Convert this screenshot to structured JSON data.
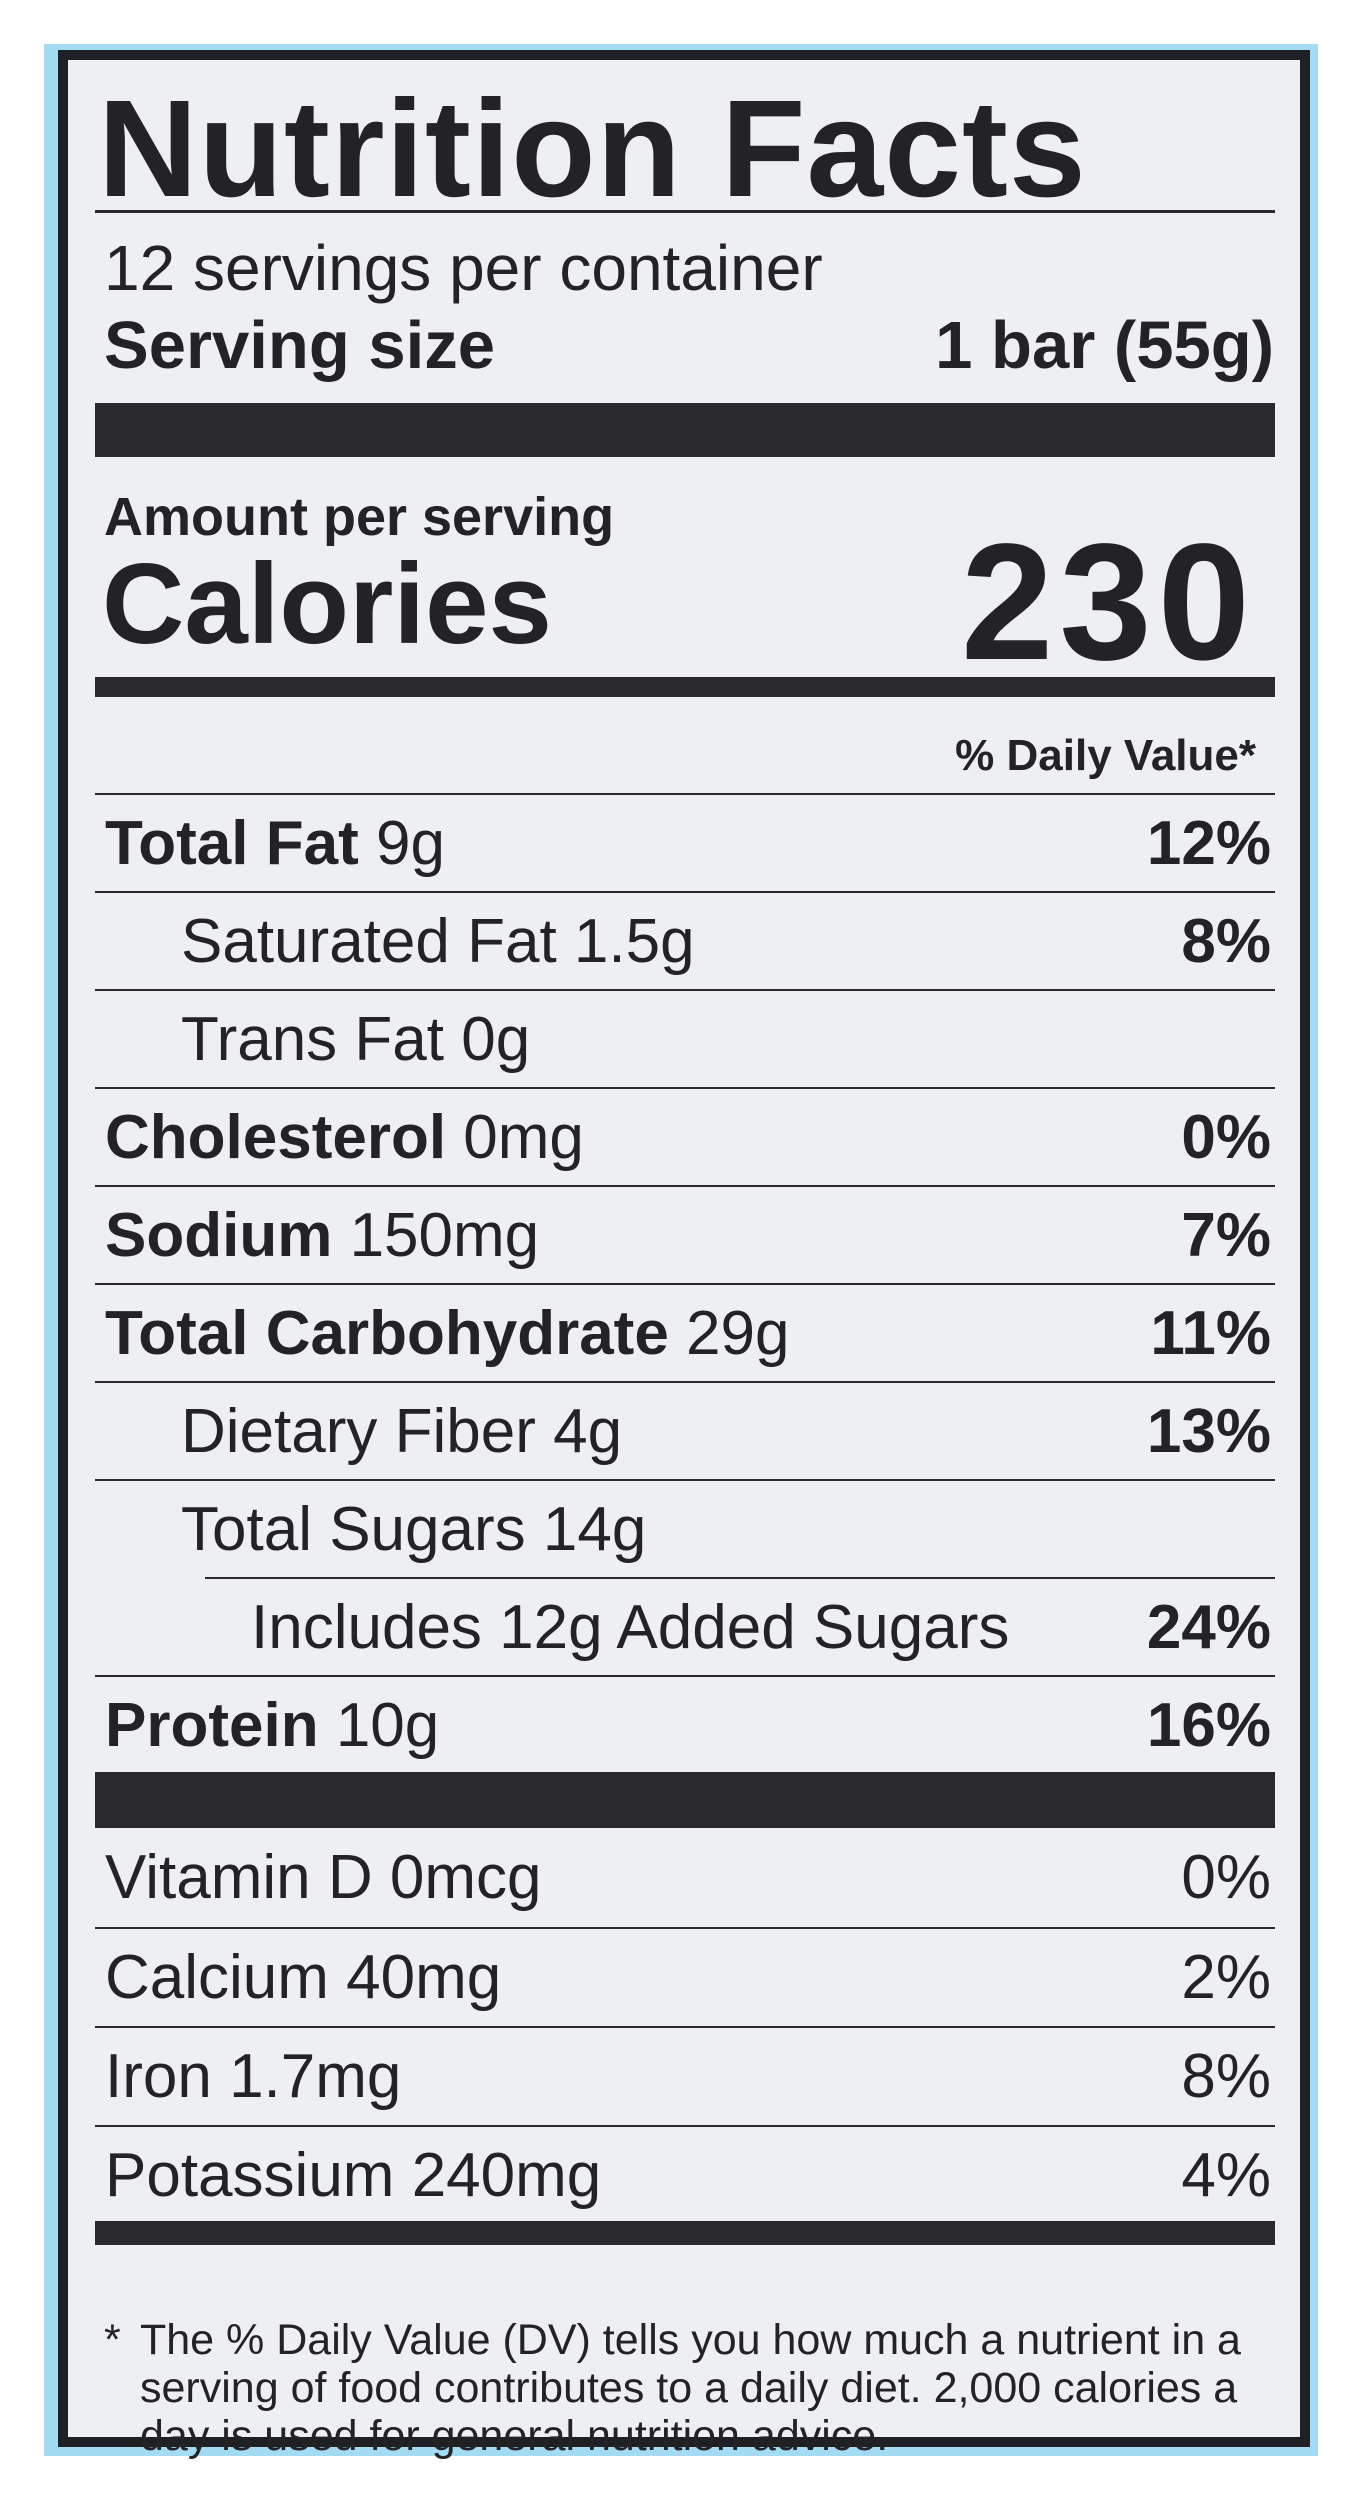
{
  "colors": {
    "border_blue": "#a3dbf3",
    "ink": "#232325",
    "panel": "#eeeff3"
  },
  "title": "Nutrition Facts",
  "servings_per_container": "12 servings per container",
  "serving_size": {
    "label": "Serving size",
    "value": "1 bar (55g)"
  },
  "amount_per_serving": "Amount per serving",
  "calories": {
    "label": "Calories",
    "value": "230"
  },
  "daily_value_header": "% Daily Value*",
  "nutrients": [
    {
      "name": "Total Fat",
      "amount": "9g",
      "dv": "12%"
    },
    {
      "name": "Saturated Fat",
      "amount": "1.5g",
      "dv": "8%"
    },
    {
      "name": "Trans Fat",
      "amount": "0g",
      "dv": ""
    },
    {
      "name": "Cholesterol",
      "amount": "0mg",
      "dv": "0%"
    },
    {
      "name": "Sodium",
      "amount": "150mg",
      "dv": "7%"
    },
    {
      "name": "Total Carbohydrate",
      "amount": "29g",
      "dv": "11%"
    },
    {
      "name": "Dietary Fiber",
      "amount": "4g",
      "dv": "13%"
    },
    {
      "name": "Total Sugars",
      "amount": "14g",
      "dv": ""
    },
    {
      "name": "Includes 12g Added Sugars",
      "amount": "",
      "dv": "24%"
    },
    {
      "name": "Protein",
      "amount": "10g",
      "dv": "16%"
    }
  ],
  "vitamins": [
    {
      "name": "Vitamin D",
      "amount": "0mcg",
      "dv": "0%"
    },
    {
      "name": "Calcium",
      "amount": "40mg",
      "dv": "2%"
    },
    {
      "name": "Iron",
      "amount": "1.7mg",
      "dv": "8%"
    },
    {
      "name": "Potassium",
      "amount": "240mg",
      "dv": "4%"
    }
  ],
  "footnote": {
    "marker": "*",
    "text": "The % Daily Value (DV) tells you how much a nutrient in a serving of food contributes to a daily diet. 2,000 calories a day is used for general nutrition advice."
  }
}
